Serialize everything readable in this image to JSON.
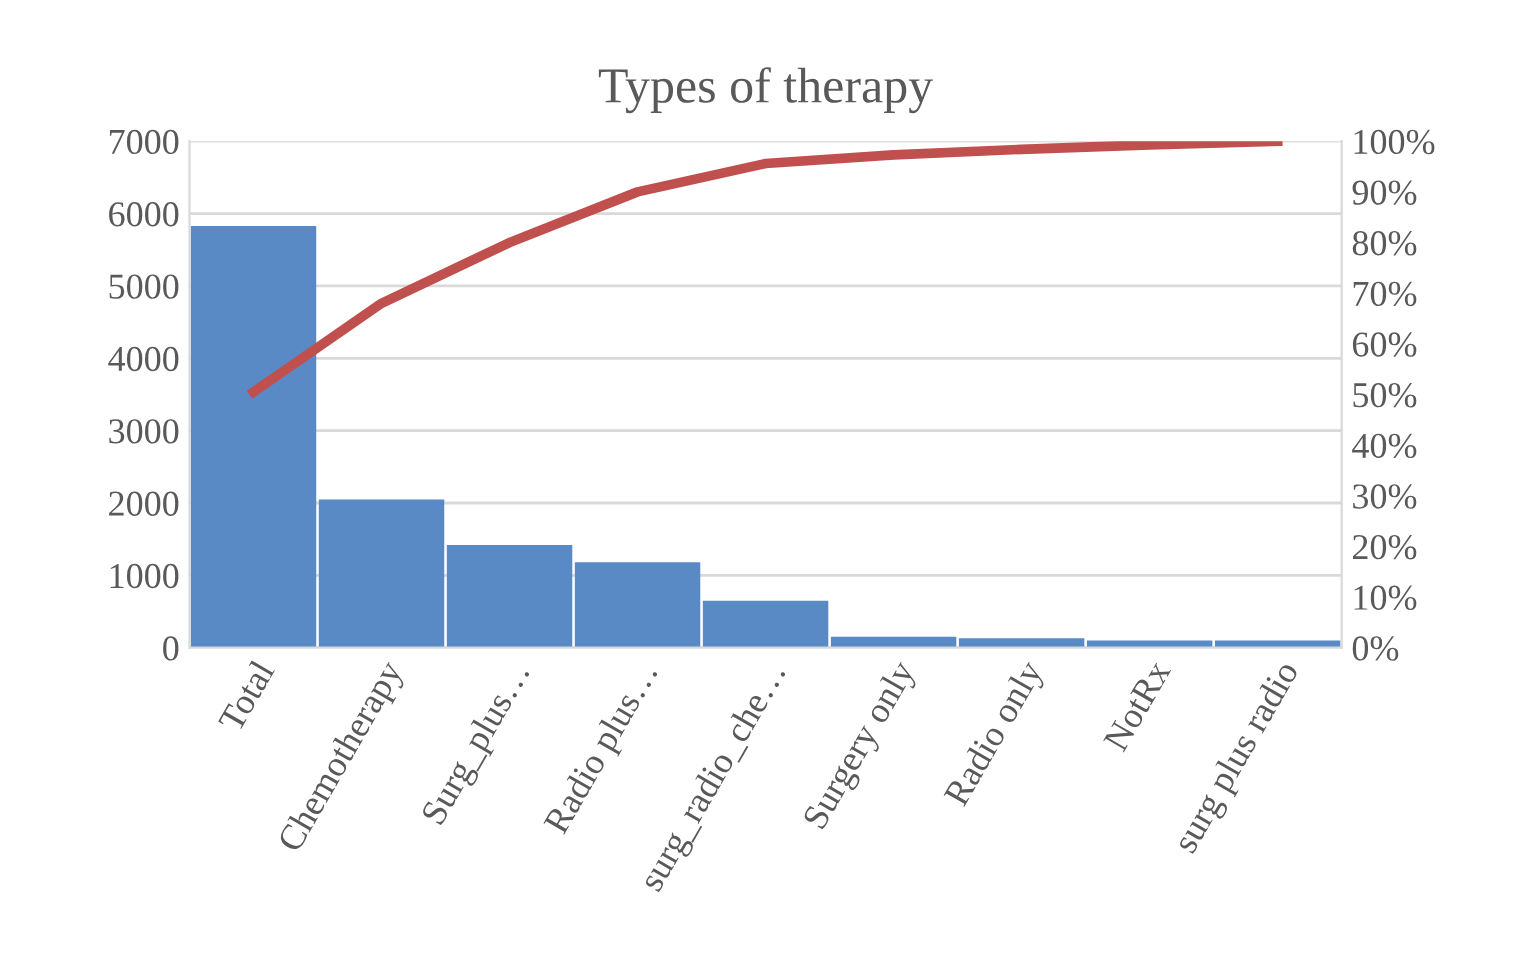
{
  "chart_data": {
    "type": "bar",
    "title": "Types of therapy",
    "categories": [
      "Total",
      "Chemotherapy",
      "Surg_plus…",
      "Radio plus…",
      "surg_radio_che…",
      "Surgery only",
      "Radio only",
      "NotRx",
      "surg plus radio"
    ],
    "series": [
      {
        "color": "#5a8ac6",
        "values": [
          5830,
          2050,
          1420,
          1180,
          650,
          150,
          130,
          100,
          100
        ]
      },
      {
        "type": "line",
        "axis": "y2",
        "color": "#c0504d",
        "values": [
          50.5,
          68,
          80,
          90,
          95.6,
          97.3,
          98.4,
          99.3,
          100
        ]
      }
    ],
    "ylim": [
      0,
      7000
    ],
    "yticks": [
      0,
      1000,
      2000,
      3000,
      4000,
      5000,
      6000,
      7000
    ],
    "y2lim": [
      0,
      100
    ],
    "y2ticks": [
      {
        "value": 0,
        "label": "0%"
      },
      {
        "value": 10,
        "label": "10%"
      },
      {
        "value": 20,
        "label": "20%"
      },
      {
        "value": 30,
        "label": "30%"
      },
      {
        "value": 40,
        "label": "40%"
      },
      {
        "value": 50,
        "label": "50%"
      },
      {
        "value": 60,
        "label": "60%"
      },
      {
        "value": 70,
        "label": "70%"
      },
      {
        "value": 80,
        "label": "80%"
      },
      {
        "value": 90,
        "label": "90%"
      },
      {
        "value": 100,
        "label": "100%"
      }
    ],
    "grid": "y",
    "marker": "none",
    "line_style": "solid"
  }
}
